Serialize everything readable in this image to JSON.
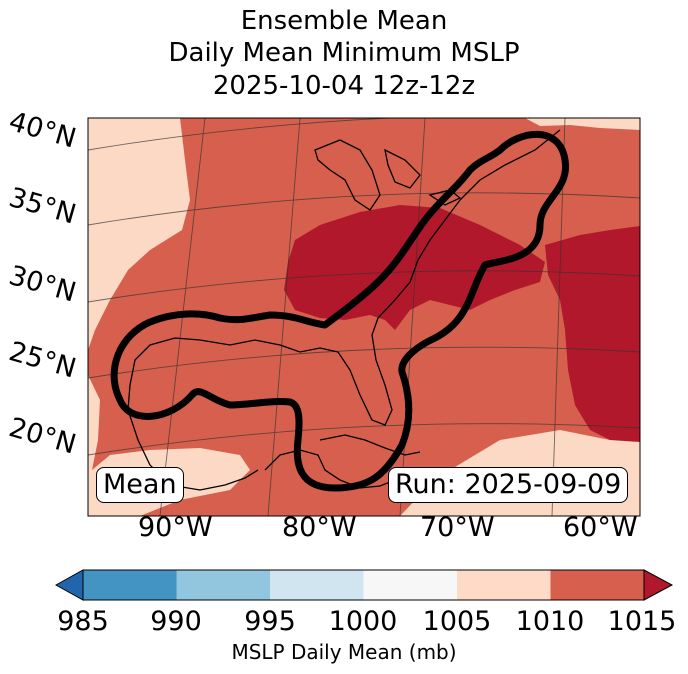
{
  "title": {
    "line1": "Ensemble Mean",
    "line2": "Daily Mean Minimum MSLP",
    "line3": "2025-10-04 12z-12z"
  },
  "map": {
    "lat_labels": [
      "40°N",
      "35°N",
      "30°N",
      "25°N",
      "20°N"
    ],
    "lon_labels": [
      "90°W",
      "80°W",
      "70°W",
      "60°W"
    ],
    "corner_left_label": "Mean",
    "corner_right_label": "Run: 2025-09-09",
    "colors": {
      "lt_1005_1010": "#fcd9c4",
      "m_1010_1015": "#d6604d",
      "gt_1015": "#b2182b",
      "contour": "#000000"
    }
  },
  "colorbar": {
    "ticks": [
      "985",
      "990",
      "995",
      "1000",
      "1005",
      "1010",
      "1015"
    ],
    "colors": [
      "#2166ac",
      "#4393c3",
      "#92c5de",
      "#d1e5f0",
      "#f7f7f7",
      "#fddbc7",
      "#d6604d",
      "#b2182b"
    ],
    "label": "MSLP Daily Mean (mb)"
  }
}
